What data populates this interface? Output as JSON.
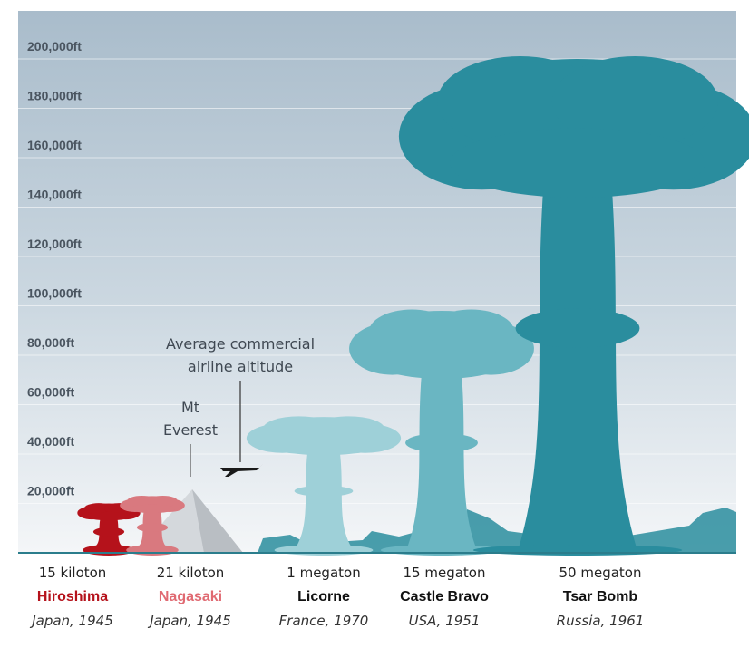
{
  "chart_data": {
    "type": "bar",
    "ylim": [
      0,
      210000
    ],
    "y_ticks": [
      20000,
      40000,
      60000,
      80000,
      100000,
      120000,
      140000,
      160000,
      180000,
      200000
    ],
    "y_tick_labels": [
      "20,000ft",
      "40,000ft",
      "60,000ft",
      "80,000ft",
      "100,000ft",
      "120,000ft",
      "140,000ft",
      "160,000ft",
      "180,000ft",
      "200,000ft"
    ],
    "grid": true,
    "categories": [
      "Hiroshima",
      "Nagasaki",
      "Licorne",
      "Castle Bravo",
      "Tsar Bomb"
    ],
    "values": [
      20000,
      23000,
      55000,
      98000,
      200000
    ],
    "series": [
      {
        "yield": "15 kiloton",
        "name": "Hiroshima",
        "place": "Japan, 1945",
        "cloud_top_ft": 20000,
        "color": "#b5121b",
        "name_color": "#b5121b"
      },
      {
        "yield": "21 kiloton",
        "name": "Nagasaki",
        "place": "Japan, 1945",
        "cloud_top_ft": 23000,
        "color": "#d9797f",
        "name_color": "#e06a72"
      },
      {
        "yield": "1 megaton",
        "name": "Licorne",
        "place": "France, 1970",
        "cloud_top_ft": 55000,
        "color": "#9ed0d8",
        "name_color": "#111111"
      },
      {
        "yield": "15 megaton",
        "name": "Castle Bravo",
        "place": "USA, 1951",
        "cloud_top_ft": 98000,
        "color": "#6ab6c2",
        "name_color": "#111111"
      },
      {
        "yield": "50 megaton",
        "name": "Tsar Bomb",
        "place": "Russia, 1961",
        "cloud_top_ft": 200000,
        "color": "#2a8d9e",
        "name_color": "#111111"
      }
    ],
    "annotations": [
      {
        "key": "airline",
        "text_lines": [
          "Average commercial",
          "airline altitude"
        ],
        "value_ft": 35000
      },
      {
        "key": "everest",
        "text_lines": [
          "Mt",
          "Everest"
        ],
        "value_ft": 29000
      }
    ]
  }
}
